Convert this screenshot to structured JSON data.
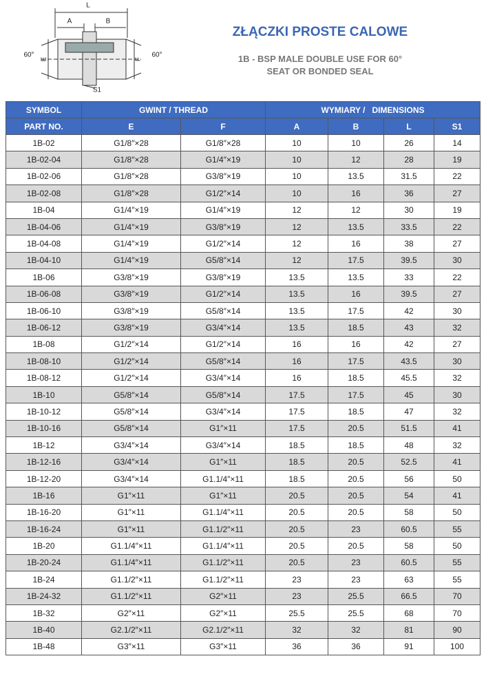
{
  "diagram": {
    "labels": [
      "L",
      "A",
      "B",
      "E",
      "F",
      "60°",
      "60°",
      "S1"
    ]
  },
  "header": {
    "title": "ZŁĄCZKI PROSTE CALOWE",
    "subtitle": [
      "1B - BSP MALE DOUBLE USE FOR 60°",
      "SEAT OR BONDED SEAL"
    ]
  },
  "table": {
    "group_headers": [
      "SYMBOL",
      "GWINT / THREAD",
      "WYMIARY /   DIMENSIONS"
    ],
    "columns": [
      "PART NO.",
      "E",
      "F",
      "A",
      "B",
      "L",
      "S1"
    ],
    "rows": [
      [
        "1B-02",
        "G1/8″×28",
        "G1/8″×28",
        10,
        10,
        26,
        14
      ],
      [
        "1B-02-04",
        "G1/8″×28",
        "G1/4″×19",
        10,
        12,
        28,
        19
      ],
      [
        "1B-02-06",
        "G1/8″×28",
        "G3/8″×19",
        10,
        13.5,
        31.5,
        22
      ],
      [
        "1B-02-08",
        "G1/8″×28",
        "G1/2″×14",
        10,
        16,
        36,
        27
      ],
      [
        "1B-04",
        "G1/4″×19",
        "G1/4″×19",
        12,
        12,
        30,
        19
      ],
      [
        "1B-04-06",
        "G1/4″×19",
        "G3/8″×19",
        12,
        13.5,
        33.5,
        22
      ],
      [
        "1B-04-08",
        "G1/4″×19",
        "G1/2″×14",
        12,
        16,
        38,
        27
      ],
      [
        "1B-04-10",
        "G1/4″×19",
        "G5/8″×14",
        12,
        17.5,
        39.5,
        30
      ],
      [
        "1B-06",
        "G3/8″×19",
        "G3/8″×19",
        13.5,
        13.5,
        33,
        22
      ],
      [
        "1B-06-08",
        "G3/8″×19",
        "G1/2″×14",
        13.5,
        16,
        39.5,
        27
      ],
      [
        "1B-06-10",
        "G3/8″×19",
        "G5/8″×14",
        13.5,
        17.5,
        42,
        30
      ],
      [
        "1B-06-12",
        "G3/8″×19",
        "G3/4″×14",
        13.5,
        18.5,
        43,
        32
      ],
      [
        "1B-08",
        "G1/2″×14",
        "G1/2″×14",
        16,
        16,
        42,
        27
      ],
      [
        "1B-08-10",
        "G1/2″×14",
        "G5/8″×14",
        16,
        17.5,
        43.5,
        30
      ],
      [
        "1B-08-12",
        "G1/2″×14",
        "G3/4″×14",
        16,
        18.5,
        45.5,
        32
      ],
      [
        "1B-10",
        "G5/8″×14",
        "G5/8″×14",
        17.5,
        17.5,
        45,
        30
      ],
      [
        "1B-10-12",
        "G5/8″×14",
        "G3/4″×14",
        17.5,
        18.5,
        47,
        32
      ],
      [
        "1B-10-16",
        "G5/8″×14",
        "G1″×11",
        17.5,
        20.5,
        51.5,
        41
      ],
      [
        "1B-12",
        "G3/4″×14",
        "G3/4″×14",
        18.5,
        18.5,
        48,
        32
      ],
      [
        "1B-12-16",
        "G3/4″×14",
        "G1″×11",
        18.5,
        20.5,
        52.5,
        41
      ],
      [
        "1B-12-20",
        "G3/4″×14",
        "G1.1/4″×11",
        18.5,
        20.5,
        56,
        50
      ],
      [
        "1B-16",
        "G1″×11",
        "G1″×11",
        20.5,
        20.5,
        54,
        41
      ],
      [
        "1B-16-20",
        "G1″×11",
        "G1.1/4″×11",
        20.5,
        20.5,
        58,
        50
      ],
      [
        "1B-16-24",
        "G1″×11",
        "G1.1/2″×11",
        20.5,
        23,
        60.5,
        55
      ],
      [
        "1B-20",
        "G1.1/4″×11",
        "G1.1/4″×11",
        20.5,
        20.5,
        58,
        50
      ],
      [
        "1B-20-24",
        "G1.1/4″×11",
        "G1.1/2″×11",
        20.5,
        23,
        60.5,
        55
      ],
      [
        "1B-24",
        "G1.1/2″×11",
        "G1.1/2″×11",
        23,
        23,
        63,
        55
      ],
      [
        "1B-24-32",
        "G1.1/2″×11",
        "G2″×11",
        23,
        25.5,
        66.5,
        70
      ],
      [
        "1B-32",
        "G2″×11",
        "G2″×11",
        25.5,
        25.5,
        68,
        70
      ],
      [
        "1B-40",
        "G2.1/2″×11",
        "G2.1/2″×11",
        32,
        32,
        81,
        90
      ],
      [
        "1B-48",
        "G3″×11",
        "G3″×11",
        36,
        36,
        91,
        100
      ]
    ]
  }
}
